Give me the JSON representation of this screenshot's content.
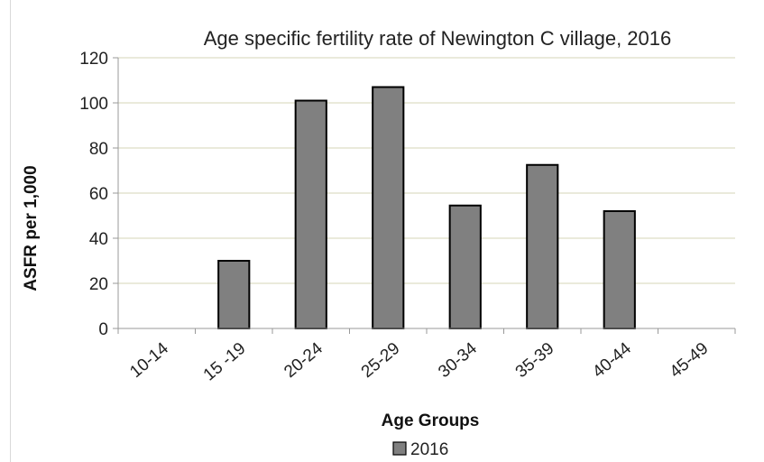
{
  "chart_data": {
    "type": "bar",
    "title": "Age specific fertility rate of Newington C village, 2016",
    "xlabel": "Age Groups",
    "ylabel": "ASFR per 1,000",
    "categories": [
      "10-14",
      "15 -19",
      "20-24",
      "25-29",
      "30-34",
      "35-39",
      "40-44",
      "45-49"
    ],
    "series": [
      {
        "name": "2016",
        "values": [
          0,
          30,
          101,
          107,
          54.5,
          72.5,
          52,
          0
        ]
      }
    ],
    "ylim": [
      0,
      120
    ],
    "yticks": [
      "0",
      "20",
      "40",
      "60",
      "80",
      "100",
      "120"
    ],
    "grid": true,
    "legend": "bottom",
    "colors": {
      "bar": "#808080",
      "bar_stroke": "#000000",
      "grid": "#e3e3cf",
      "axis": "#999999"
    }
  }
}
